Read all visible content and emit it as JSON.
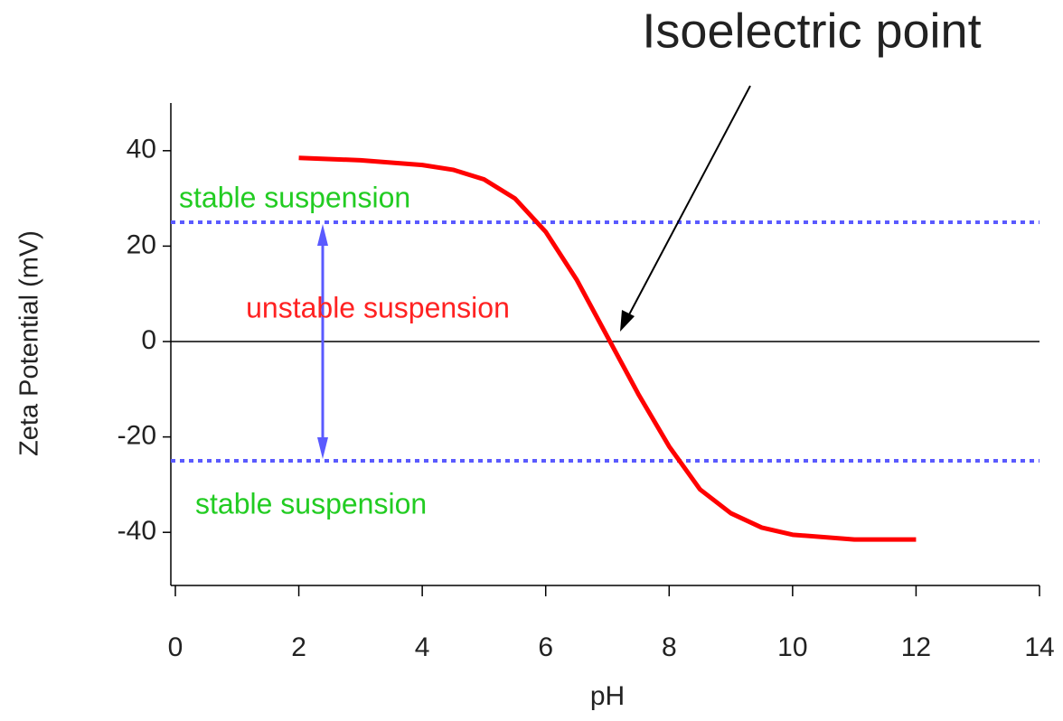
{
  "chart_data": {
    "type": "line",
    "title": "Isoelectric point",
    "x_label": "pH",
    "y_label": "Zeta Potential (mV)",
    "series": [
      {
        "name": "Zeta potential",
        "color": "#ff0000",
        "x": [
          2,
          3,
          4,
          4.5,
          5,
          5.5,
          6,
          6.5,
          7,
          7.5,
          8,
          8.5,
          9,
          9.5,
          10,
          11,
          12
        ],
        "values": [
          38.5,
          38,
          37,
          36,
          34,
          30,
          23,
          13,
          1,
          -11,
          -22,
          -31,
          -36,
          -39,
          -40.5,
          -41.5,
          -41.5
        ]
      }
    ],
    "reference_lines": {
      "values": [
        25,
        -25
      ],
      "color": "#5a5aff"
    },
    "zero_line": 0,
    "annotations": [
      "stable suspension",
      "unstable suspension",
      "stable suspension"
    ],
    "annotation_colors": [
      "#22cc22",
      "#ff2222",
      "#22cc22"
    ],
    "xlim": [
      0,
      14
    ],
    "xticks": [
      0,
      2,
      4,
      6,
      8,
      10,
      12,
      14
    ],
    "ylim": [
      -50,
      50
    ],
    "yticks": [
      -40,
      -20,
      0,
      20,
      40
    ]
  }
}
